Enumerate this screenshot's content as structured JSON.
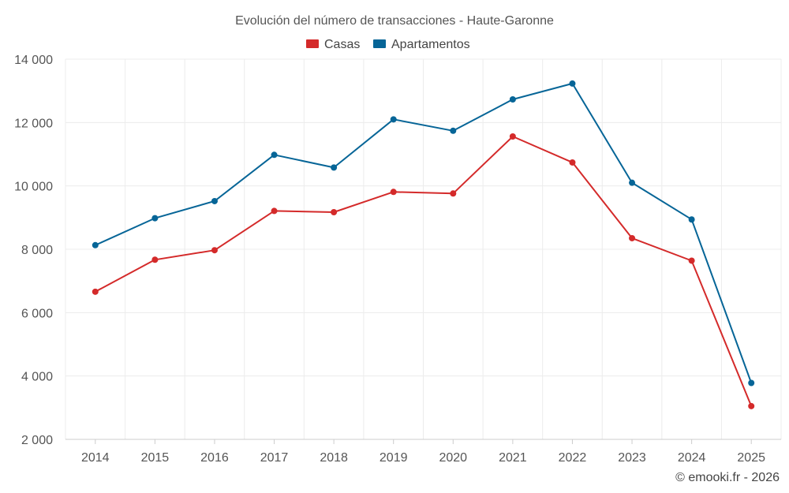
{
  "chart_data": {
    "type": "line",
    "title": "Evolución del número de transacciones - Haute-Garonne",
    "categories": [
      "2014",
      "2015",
      "2016",
      "2017",
      "2018",
      "2019",
      "2020",
      "2021",
      "2022",
      "2023",
      "2024",
      "2025"
    ],
    "series": [
      {
        "name": "Casas",
        "color": "#d42a2a",
        "values": [
          6660,
          7670,
          7970,
          9210,
          9170,
          9810,
          9760,
          11560,
          10740,
          8350,
          7640,
          3050
        ]
      },
      {
        "name": "Apartamentos",
        "color": "#066597",
        "values": [
          8130,
          8980,
          9520,
          10980,
          10580,
          12100,
          11740,
          12730,
          13230,
          10100,
          8940,
          3780
        ]
      }
    ],
    "y_ticks": [
      2000,
      4000,
      6000,
      8000,
      10000,
      12000,
      14000
    ],
    "y_tick_labels": [
      "2 000",
      "4 000",
      "6 000",
      "8 000",
      "10 000",
      "12 000",
      "14 000"
    ],
    "ylim": [
      2000,
      14000
    ],
    "xlabel": "",
    "ylabel": "",
    "grid": true,
    "legend_position": "top-center"
  },
  "credit": "© emooki.fr - 2026"
}
